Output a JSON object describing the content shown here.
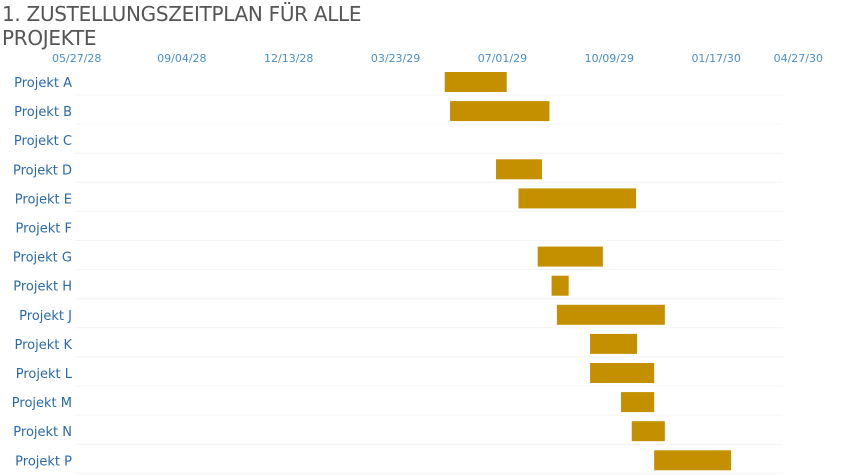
{
  "title": "1. ZUSTELLUNGSZEITPLAN FÜR ALLE PROJEKTE",
  "colors": {
    "bar": "#c49000",
    "tick": "#4a90c8",
    "category": "#2a6aa8",
    "title": "#555555"
  },
  "chart_data": {
    "type": "bar",
    "orientation": "horizontal-gantt",
    "title": "1. ZUSTELLUNGSZEITPLAN FÜR ALLE PROJEKTE",
    "x_axis": {
      "position": "top",
      "type": "date",
      "ticks": [
        "05/27/28",
        "09/04/28",
        "12/13/28",
        "03/23/29",
        "07/01/29",
        "10/09/29",
        "01/17/30",
        "04/27/30"
      ],
      "range": [
        "2028-05-27",
        "2030-04-27"
      ]
    },
    "grid": false,
    "categories": [
      "Projekt A",
      "Projekt B",
      "Projekt C",
      "Projekt D",
      "Projekt E",
      "Projekt F",
      "Projekt G",
      "Projekt H",
      "Projekt J",
      "Projekt K",
      "Projekt L",
      "Projekt M",
      "Projekt N",
      "Projekt P"
    ],
    "tasks": [
      {
        "name": "Projekt A",
        "start": "2029-05-08",
        "end": "2029-07-05"
      },
      {
        "name": "Projekt B",
        "start": "2029-05-13",
        "end": "2029-08-14"
      },
      {
        "name": "Projekt C",
        "start": null,
        "end": null
      },
      {
        "name": "Projekt D",
        "start": "2029-06-25",
        "end": "2029-08-07"
      },
      {
        "name": "Projekt E",
        "start": "2029-07-16",
        "end": "2029-11-03"
      },
      {
        "name": "Projekt F",
        "start": null,
        "end": null
      },
      {
        "name": "Projekt G",
        "start": "2029-08-03",
        "end": "2029-10-03"
      },
      {
        "name": "Projekt H",
        "start": "2029-08-16",
        "end": "2029-09-01"
      },
      {
        "name": "Projekt J",
        "start": "2029-08-21",
        "end": "2029-11-30"
      },
      {
        "name": "Projekt K",
        "start": "2029-09-21",
        "end": "2029-11-04"
      },
      {
        "name": "Projekt L",
        "start": "2029-09-21",
        "end": "2029-11-20"
      },
      {
        "name": "Projekt M",
        "start": "2029-10-20",
        "end": "2029-11-20"
      },
      {
        "name": "Projekt N",
        "start": "2029-10-30",
        "end": "2029-11-30"
      },
      {
        "name": "Projekt P",
        "start": "2029-11-20",
        "end": "2030-01-31"
      }
    ]
  }
}
